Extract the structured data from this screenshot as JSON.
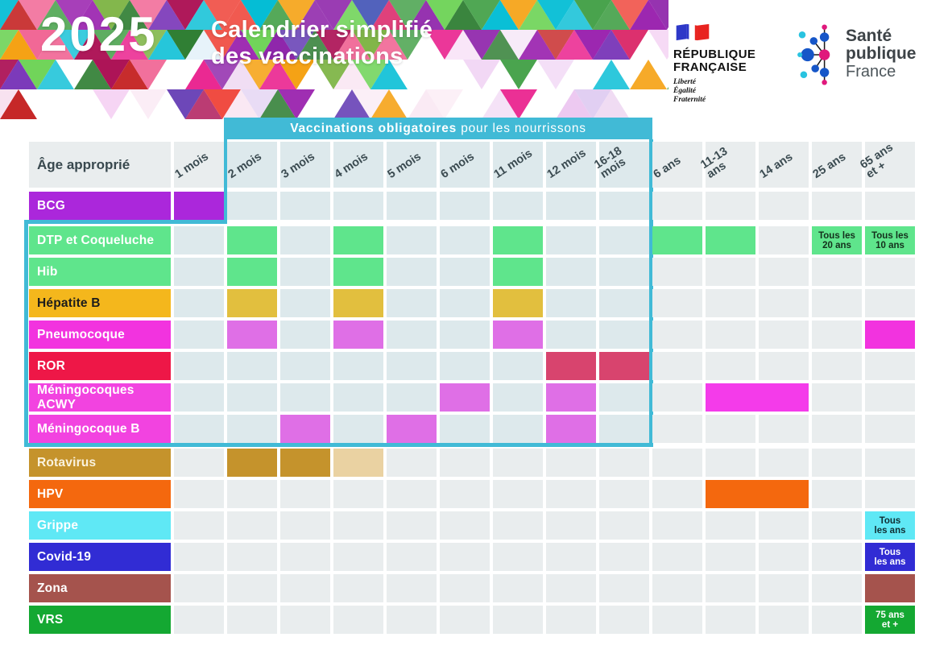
{
  "header": {
    "year": "2025",
    "title_line1": "Calendrier simplifié",
    "title_line2": "des vaccinations",
    "mosaic_palette": [
      "#e91e8c",
      "#9c27b0",
      "#6a1fb0",
      "#43a047",
      "#66d14e",
      "#00bcd4",
      "#ef4136",
      "#f59e0b",
      "#d81b60",
      "#3f51b5",
      "#8e24aa",
      "#2e7d32",
      "#c62828",
      "#ad1457",
      "#7cb342",
      "#26c6da",
      "#f06292",
      "#5e35b1"
    ],
    "mosaic_pastels": [
      "#ecc6f0",
      "#f5d3f3",
      "#dcc8f0",
      "#f8e0ef",
      "#cfe8f5",
      "#efd9f2"
    ],
    "logos": {
      "republique": {
        "line1": "RÉPUBLIQUE",
        "line2": "FRANÇAISE",
        "motto": [
          "Liberté",
          "Égalité",
          "Fraternité"
        ]
      },
      "sante_publique": {
        "line1": "Santé",
        "line2": "publique",
        "line3": "France"
      }
    }
  },
  "table": {
    "corner_label": "Âge approprié",
    "banner_bold": "Vaccinations obligatoires",
    "banner_regular": " pour les nourrissons",
    "banner_color": "#41bad6",
    "cell_bg_outside": "#e9edee",
    "cell_bg_inside_box": "#dde9ec",
    "columns": [
      {
        "id": "1m",
        "label": "1 mois",
        "in_box": false
      },
      {
        "id": "2m",
        "label": "2 mois",
        "in_box": true
      },
      {
        "id": "3m",
        "label": "3 mois",
        "in_box": true
      },
      {
        "id": "4m",
        "label": "4 mois",
        "in_box": true
      },
      {
        "id": "5m",
        "label": "5 mois",
        "in_box": true
      },
      {
        "id": "6m",
        "label": "6 mois",
        "in_box": true
      },
      {
        "id": "11m",
        "label": "11 mois",
        "in_box": true
      },
      {
        "id": "12m",
        "label": "12 mois",
        "in_box": true
      },
      {
        "id": "16-18m",
        "label": "16-18\nmois",
        "in_box": true
      },
      {
        "id": "6a",
        "label": "6 ans",
        "in_box": false
      },
      {
        "id": "11-13a",
        "label": "11-13\nans",
        "in_box": false
      },
      {
        "id": "14a",
        "label": "14 ans",
        "in_box": false
      },
      {
        "id": "25a",
        "label": "25 ans",
        "in_box": false
      },
      {
        "id": "65a",
        "label": "65 ans\net +",
        "in_box": false
      }
    ],
    "rows": [
      {
        "id": "bcg",
        "label": "BCG",
        "label_color": "#ab27db",
        "label_text_color": "#ffffff",
        "cells": [
          {
            "col": 0,
            "color": "#ab27db"
          }
        ]
      },
      {
        "id": "dtp",
        "label": "DTP et Coqueluche",
        "label_color": "#5fe58c",
        "label_text_color": "#ffffff",
        "cells": [
          {
            "col": 1,
            "color": "#5fe58c"
          },
          {
            "col": 3,
            "color": "#5fe58c"
          },
          {
            "col": 6,
            "color": "#5fe58c"
          },
          {
            "col": 9,
            "color": "#5fe58c"
          },
          {
            "col": 10,
            "color": "#5fe58c"
          },
          {
            "col": 12,
            "color": "#5fe58c",
            "text": "Tous les\n20 ans",
            "text_color": "#14301c"
          },
          {
            "col": 13,
            "color": "#5fe58c",
            "text": "Tous les\n10 ans",
            "text_color": "#14301c"
          }
        ]
      },
      {
        "id": "hib",
        "label": "Hib",
        "label_color": "#5fe58c",
        "label_text_color": "#ffffff",
        "cells": [
          {
            "col": 1,
            "color": "#5fe58c"
          },
          {
            "col": 3,
            "color": "#5fe58c"
          },
          {
            "col": 6,
            "color": "#5fe58c"
          }
        ]
      },
      {
        "id": "hepb",
        "label": "Hépatite B",
        "label_color": "#f4b71c",
        "label_text_color": "#1c1c1c",
        "cells": [
          {
            "col": 1,
            "color": "#e2bf3e"
          },
          {
            "col": 3,
            "color": "#e2bf3e"
          },
          {
            "col": 6,
            "color": "#e2bf3e"
          }
        ]
      },
      {
        "id": "pneumo",
        "label": "Pneumocoque",
        "label_color": "#f233df",
        "label_text_color": "#ffffff",
        "cells": [
          {
            "col": 1,
            "color": "#df6fe6"
          },
          {
            "col": 3,
            "color": "#df6fe6"
          },
          {
            "col": 6,
            "color": "#df6fe6"
          },
          {
            "col": 13,
            "color": "#f233df"
          }
        ]
      },
      {
        "id": "ror",
        "label": "ROR",
        "label_color": "#ee1747",
        "label_text_color": "#ffffff",
        "cells": [
          {
            "col": 7,
            "color": "#d8446e"
          },
          {
            "col": 8,
            "color": "#d8446e"
          }
        ]
      },
      {
        "id": "acwy",
        "label": "Méningocoques ACWY",
        "label_color": "#f243e0",
        "label_text_color": "#ffffff",
        "cells": [
          {
            "col": 5,
            "color": "#df6fe6"
          },
          {
            "col": 7,
            "color": "#df6fe6"
          },
          {
            "col": 10,
            "span": 2,
            "color": "#f43bea"
          }
        ]
      },
      {
        "id": "menb",
        "label": "Méningocoque B",
        "label_color": "#f243e0",
        "label_text_color": "#ffffff",
        "cells": [
          {
            "col": 2,
            "color": "#df6fe6"
          },
          {
            "col": 4,
            "color": "#df6fe6"
          },
          {
            "col": 7,
            "color": "#df6fe6"
          }
        ]
      },
      {
        "id": "rota",
        "label": "Rotavirus",
        "label_color": "#c5932c",
        "label_text_color": "#faf3df",
        "cells": [
          {
            "col": 1,
            "color": "#c5932c"
          },
          {
            "col": 2,
            "color": "#c5932c"
          },
          {
            "col": 3,
            "color": "#ead2a2"
          }
        ]
      },
      {
        "id": "hpv",
        "label": "HPV",
        "label_color": "#f4680e",
        "label_text_color": "#ffffff",
        "cells": [
          {
            "col": 10,
            "span": 2,
            "color": "#f4680e"
          }
        ]
      },
      {
        "id": "grippe",
        "label": "Grippe",
        "label_color": "#5fe8f5",
        "label_text_color": "#ffffff",
        "cells": [
          {
            "col": 13,
            "color": "#5fe8f5",
            "text": "Tous\nles ans",
            "text_color": "#102e33"
          }
        ]
      },
      {
        "id": "covid",
        "label": "Covid-19",
        "label_color": "#312cd4",
        "label_text_color": "#ffffff",
        "cells": [
          {
            "col": 13,
            "color": "#312cd4",
            "text": "Tous\nles ans",
            "text_color": "#ffffff"
          }
        ]
      },
      {
        "id": "zona",
        "label": "Zona",
        "label_color": "#a5534d",
        "label_text_color": "#ffffff",
        "cells": [
          {
            "col": 13,
            "color": "#a5534d"
          }
        ]
      },
      {
        "id": "vrs",
        "label": "VRS",
        "label_color": "#14a832",
        "label_text_color": "#ffffff",
        "cells": [
          {
            "col": 13,
            "color": "#14a832",
            "text": "75 ans\net +",
            "text_color": "#ffffff"
          }
        ]
      }
    ]
  }
}
